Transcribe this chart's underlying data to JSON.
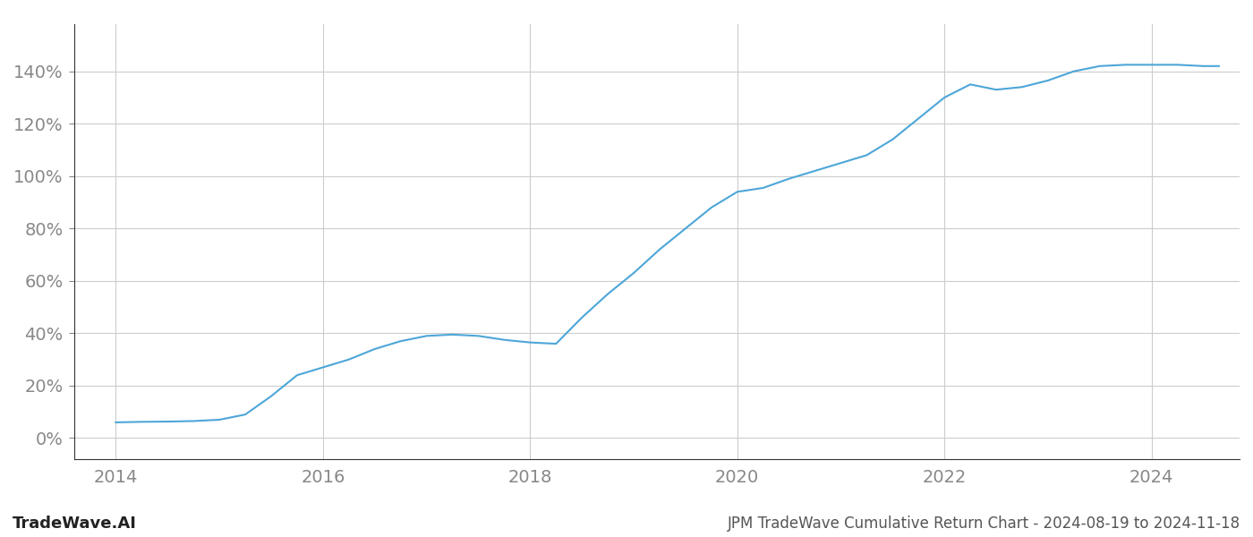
{
  "title": "JPM TradeWave Cumulative Return Chart - 2024-08-19 to 2024-11-18",
  "watermark": "TradeWave.AI",
  "line_color": "#4da6d8",
  "background_color": "#ffffff",
  "grid_color": "#cccccc",
  "x_values": [
    2014.0,
    2014.25,
    2014.5,
    2014.75,
    2015.0,
    2015.25,
    2015.5,
    2015.75,
    2016.0,
    2016.25,
    2016.5,
    2016.75,
    2017.0,
    2017.25,
    2017.5,
    2017.75,
    2018.0,
    2018.25,
    2018.5,
    2018.75,
    2019.0,
    2019.25,
    2019.5,
    2019.75,
    2020.0,
    2020.25,
    2020.5,
    2020.75,
    2021.0,
    2021.25,
    2021.5,
    2021.75,
    2022.0,
    2022.25,
    2022.5,
    2022.75,
    2023.0,
    2023.25,
    2023.5,
    2023.75,
    2024.0,
    2024.25,
    2024.5,
    2024.65
  ],
  "y_values": [
    6.0,
    6.2,
    6.3,
    6.5,
    7.0,
    9.0,
    16.0,
    24.0,
    27.0,
    30.0,
    34.0,
    37.0,
    39.0,
    39.5,
    39.0,
    37.5,
    36.5,
    36.0,
    46.0,
    55.0,
    63.0,
    72.0,
    80.0,
    88.0,
    94.0,
    95.5,
    99.0,
    102.0,
    105.0,
    108.0,
    114.0,
    122.0,
    130.0,
    135.0,
    133.0,
    134.0,
    136.5,
    140.0,
    142.0,
    142.5,
    142.5,
    142.5,
    142.0,
    142.0
  ],
  "yticks": [
    0,
    20,
    40,
    60,
    80,
    100,
    120,
    140
  ],
  "xticks": [
    2014,
    2016,
    2018,
    2020,
    2022,
    2024
  ],
  "xlim": [
    2013.6,
    2024.85
  ],
  "ylim": [
    -8,
    158
  ],
  "line_width": 1.5,
  "title_fontsize": 12,
  "watermark_fontsize": 13,
  "tick_fontsize": 14,
  "text_color": "#888888",
  "spine_color": "#333333"
}
